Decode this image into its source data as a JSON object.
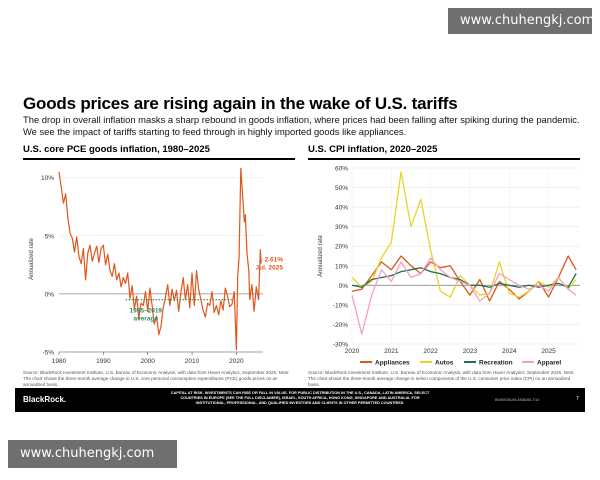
{
  "watermark": "www.chuhengkj.com",
  "title": "Goods prices are rising again in the wake of U.S. tariffs",
  "subtitle": "The drop in overall inflation masks a sharp rebound in goods inflation, where prices had been falling after spiking during the pandemic. We see the impact of tariffs starting to feed through in highly imported goods like appliances.",
  "footer": {
    "brand": "BlackRock.",
    "disclaimer": "CAPITAL AT RISK. INVESTMENTS CAN RISE OR FALL IN VALUE. FOR PUBLIC DISTRIBUTION IN THE U.S., CANADA, LATIN AMERICA, SELECT COUNTRIES IN EUROPE (SEE THE FULL DISCLAIMER), ISRAEL, SOUTH AFRICA, HONG KONG, SINGAPORE AND AUSTRALIA. FOR INSTITUTIONAL, PROFESSIONAL, AND QUALIFIED INVESTORS AND CLIENTS IN OTHER PERMITTED COUNTRIES.",
    "code": "BIIM0925U/M-4836265-7/14",
    "page": "7"
  },
  "colors": {
    "orange": "#e0561c",
    "green": "#2e8b57",
    "darkgreen": "#1f6e52",
    "yellow": "#e8d42a",
    "pink": "#f2a0c0",
    "grid": "#cccccc"
  },
  "chart_data": [
    {
      "type": "line",
      "title": "U.S. core PCE goods inflation, 1980–2025",
      "ylabel": "Annualized rate",
      "xlim": [
        1980,
        2026
      ],
      "ylim": [
        -5,
        11
      ],
      "yticks": [
        10,
        5,
        0,
        -5
      ],
      "ytick_labels": [
        "10%",
        "5%",
        "0%",
        "-5%"
      ],
      "xticks": [
        1980,
        1990,
        2000,
        2010,
        2020
      ],
      "xtick_labels": [
        "1980",
        "1990",
        "2000",
        "2010",
        "2020"
      ],
      "series": [
        {
          "name": "Core PCE goods",
          "x": [
            1980,
            1980.5,
            1981,
            1981.5,
            1982,
            1982.5,
            1983,
            1983.5,
            1984,
            1984.5,
            1985,
            1985.5,
            1986,
            1986.5,
            1987,
            1987.5,
            1988,
            1988.5,
            1989,
            1989.5,
            1990,
            1990.5,
            1991,
            1991.5,
            1992,
            1992.5,
            1993,
            1993.5,
            1994,
            1994.5,
            1995,
            1995.5,
            1996,
            1996.5,
            1997,
            1997.5,
            1998,
            1998.5,
            1999,
            1999.5,
            2000,
            2000.5,
            2001,
            2001.5,
            2002,
            2002.5,
            2003,
            2003.5,
            2004,
            2004.5,
            2005,
            2005.5,
            2006,
            2006.5,
            2007,
            2007.5,
            2008,
            2008.5,
            2009,
            2009.5,
            2010,
            2010.5,
            2011,
            2011.5,
            2012,
            2012.5,
            2013,
            2013.5,
            2014,
            2014.5,
            2015,
            2015.5,
            2016,
            2016.5,
            2017,
            2017.5,
            2018,
            2018.5,
            2019,
            2019.5,
            2020,
            2020.3,
            2020.6,
            2021,
            2021.4,
            2021.8,
            2022,
            2022.4,
            2022.8,
            2023,
            2023.5,
            2024,
            2024.5,
            2025,
            2025.4,
            2025.6
          ],
          "values": [
            10.5,
            9.2,
            7.8,
            8.6,
            6.5,
            5.2,
            4.8,
            3.6,
            4.9,
            3.2,
            2.6,
            3.9,
            1.2,
            3.5,
            4.2,
            2.8,
            3.5,
            4.1,
            2.7,
            3.9,
            4.2,
            2.5,
            3.4,
            2.0,
            1.5,
            2.6,
            1.2,
            1.8,
            0.6,
            1.4,
            0.9,
            1.8,
            -0.4,
            0.7,
            -1.3,
            -0.2,
            -2.1,
            -0.8,
            -1.0,
            0.2,
            -1.5,
            0.5,
            -1.0,
            -2.6,
            -1.9,
            -3.5,
            -2.8,
            -1.2,
            -0.3,
            0.8,
            -1.0,
            0.4,
            -0.6,
            0.3,
            -1.5,
            0.2,
            1.4,
            -0.5,
            0.8,
            -1.2,
            1.8,
            -1.0,
            2.0,
            0.4,
            -0.5,
            -1.4,
            -2.0,
            -0.8,
            -1.0,
            0.2,
            -1.6,
            -1.0,
            -1.8,
            -0.6,
            -1.4,
            0.5,
            -0.2,
            -1.1,
            -0.9,
            0.2,
            -4.8,
            1.5,
            3.2,
            10.8,
            8.5,
            6.2,
            6.8,
            3.5,
            2.0,
            -0.5,
            0.8,
            -1.5,
            0.6,
            -0.5,
            3.8,
            2.61
          ]
        }
      ],
      "reference_line": {
        "value": -0.5,
        "x_range": [
          1995,
          2019
        ],
        "label": "1995–2019 average"
      },
      "annotation": {
        "value": 2.61,
        "label_value": "2.61%",
        "label_date": "Jul. 2025"
      },
      "source": "Source: BlackRock Investment Institute, U.S. Bureau of Economic Analysis, with data from Haver Analytics, September 2025. Note: The chart shows the three-month average change in U.S. core personal consumption expenditures (PCE) goods prices on an annualized basis."
    },
    {
      "type": "line",
      "title": "U.S. CPI inflation, 2020–2025",
      "ylabel": "Annualized rate",
      "xlim": [
        2020,
        2025.8
      ],
      "ylim": [
        -30,
        60
      ],
      "yticks": [
        60,
        50,
        40,
        30,
        20,
        10,
        0,
        -10,
        -20,
        -30
      ],
      "ytick_labels": [
        "60%",
        "50%",
        "40%",
        "30%",
        "20%",
        "10%",
        "0%",
        "-10%",
        "-20%",
        "-30%"
      ],
      "xticks": [
        2020,
        2021,
        2022,
        2023,
        2024,
        2025
      ],
      "xtick_labels": [
        "2020",
        "2021",
        "2022",
        "2023",
        "2024",
        "2025"
      ],
      "x": [
        2020,
        2020.25,
        2020.5,
        2020.75,
        2021,
        2021.25,
        2021.5,
        2021.75,
        2022,
        2022.25,
        2022.5,
        2022.75,
        2023,
        2023.25,
        2023.5,
        2023.75,
        2024,
        2024.25,
        2024.5,
        2024.75,
        2025,
        2025.25,
        2025.5,
        2025.7
      ],
      "series": [
        {
          "name": "Appliances",
          "color": "#e0561c",
          "values": [
            -3,
            -2,
            5,
            12,
            8,
            15,
            10,
            6,
            12,
            9,
            10,
            2,
            -5,
            3,
            -8,
            2,
            -2,
            -7,
            -3,
            2,
            -6,
            4,
            15,
            8
          ]
        },
        {
          "name": "Autos",
          "color": "#e8d42a",
          "values": [
            4,
            -1,
            2,
            14,
            22,
            58,
            30,
            44,
            18,
            -3,
            -6,
            5,
            0,
            -5,
            -4,
            12,
            -4,
            -6,
            -3,
            2,
            -1,
            4,
            -2,
            3
          ]
        },
        {
          "name": "Recreation",
          "color": "#1f6e52",
          "values": [
            0,
            -1,
            3,
            4,
            5,
            7,
            8,
            9,
            7,
            6,
            4,
            3,
            0,
            0,
            -1,
            1,
            0,
            -1,
            0,
            -1,
            0,
            1,
            -1,
            6
          ]
        },
        {
          "name": "Apparel",
          "color": "#f2a0c0",
          "values": [
            -5,
            -25,
            -5,
            8,
            2,
            12,
            4,
            6,
            14,
            8,
            4,
            2,
            0,
            -8,
            -4,
            6,
            3,
            0,
            -2,
            0,
            -3,
            4,
            -2,
            -5
          ]
        }
      ],
      "source": "Source: BlackRock Investment Institute, U.S. Bureau of Economic Analysis, with data from Haver Analytics, September 2025. Note: The chart shows the three-month average change in select components of the U.S. consumer price index (CPI) on an annualized basis."
    }
  ]
}
